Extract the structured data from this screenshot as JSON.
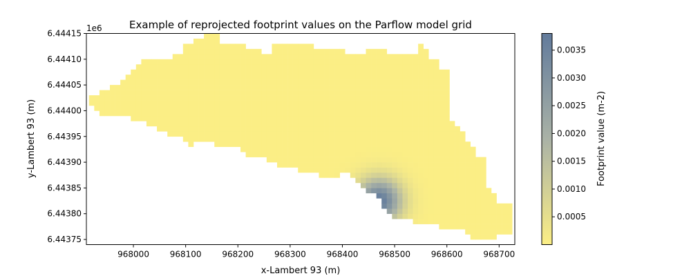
{
  "chart_data": {
    "type": "heatmap",
    "title": "Example of reprojected footprint values on the Parflow model grid",
    "xlabel": "x-Lambert 93 (m)",
    "ylabel": "y-Lambert 93 (m)",
    "y_offset_label": "1e6",
    "xlim": [
      967910,
      968730
    ],
    "ylim": [
      6443740,
      6444150
    ],
    "xticks": [
      968000,
      968100,
      968200,
      968300,
      968400,
      968500,
      968600,
      968700
    ],
    "yticks": [
      6443750,
      6443800,
      6443850,
      6443900,
      6443950,
      6444000,
      6444050,
      6444100,
      6444150
    ],
    "ytick_labels": [
      "6.44375",
      "6.44380",
      "6.44385",
      "6.44390",
      "6.44395",
      "6.44400",
      "6.44405",
      "6.44410",
      "6.44415"
    ],
    "grid": false,
    "cell_size": 10,
    "colorbar": {
      "label": "Footprint value (m-2)",
      "min": 0,
      "max": 0.0038,
      "ticks": [
        0.0005,
        0.001,
        0.0015,
        0.002,
        0.0025,
        0.003,
        0.0035
      ],
      "tick_labels": [
        "0.0005",
        "0.0010",
        "0.0015",
        "0.0020",
        "0.0025",
        "0.0030",
        "0.0035"
      ],
      "colors": [
        "#fbee85",
        "#aab2a6",
        "#627b9c"
      ]
    },
    "domain_columns": [
      [
        967920,
        6444015,
        6444025
      ],
      [
        967930,
        6444005,
        6444025
      ],
      [
        967940,
        6443995,
        6444035
      ],
      [
        967950,
        6443995,
        6444035
      ],
      [
        967960,
        6443995,
        6444045
      ],
      [
        967970,
        6443995,
        6444045
      ],
      [
        967980,
        6443995,
        6444055
      ],
      [
        967990,
        6443995,
        6444065
      ],
      [
        968000,
        6443985,
        6444075
      ],
      [
        968010,
        6443985,
        6444085
      ],
      [
        968020,
        6443985,
        6444095
      ],
      [
        968030,
        6443975,
        6444095
      ],
      [
        968040,
        6443975,
        6444095
      ],
      [
        968050,
        6443965,
        6444095
      ],
      [
        968060,
        6443965,
        6444095
      ],
      [
        968070,
        6443955,
        6444095
      ],
      [
        968080,
        6443955,
        6444105
      ],
      [
        968090,
        6443955,
        6444105
      ],
      [
        968100,
        6443945,
        6444125
      ],
      [
        968110,
        6443935,
        6444125
      ],
      [
        968120,
        6443945,
        6444135
      ],
      [
        968130,
        6443945,
        6444135
      ],
      [
        968140,
        6443945,
        6444145
      ],
      [
        968150,
        6443945,
        6444145
      ],
      [
        968160,
        6443935,
        6444145
      ],
      [
        968170,
        6443935,
        6444125
      ],
      [
        968180,
        6443935,
        6444125
      ],
      [
        968190,
        6443935,
        6444125
      ],
      [
        968200,
        6443935,
        6444125
      ],
      [
        968210,
        6443925,
        6444125
      ],
      [
        968220,
        6443915,
        6444115
      ],
      [
        968230,
        6443915,
        6444115
      ],
      [
        968240,
        6443915,
        6444115
      ],
      [
        968250,
        6443915,
        6444105
      ],
      [
        968260,
        6443905,
        6444105
      ],
      [
        968270,
        6443905,
        6444125
      ],
      [
        968280,
        6443895,
        6444125
      ],
      [
        968290,
        6443895,
        6444125
      ],
      [
        968300,
        6443895,
        6444125
      ],
      [
        968310,
        6443895,
        6444125
      ],
      [
        968320,
        6443885,
        6444125
      ],
      [
        968330,
        6443885,
        6444125
      ],
      [
        968340,
        6443885,
        6444125
      ],
      [
        968350,
        6443885,
        6444115
      ],
      [
        968360,
        6443875,
        6444115
      ],
      [
        968370,
        6443875,
        6444115
      ],
      [
        968380,
        6443875,
        6444115
      ],
      [
        968390,
        6443875,
        6444115
      ],
      [
        968400,
        6443885,
        6444115
      ],
      [
        968410,
        6443885,
        6444105
      ],
      [
        968420,
        6443875,
        6444105
      ],
      [
        968430,
        6443865,
        6444105
      ],
      [
        968440,
        6443855,
        6444105
      ],
      [
        968450,
        6443845,
        6444115
      ],
      [
        968460,
        6443845,
        6444115
      ],
      [
        968470,
        6443835,
        6444115
      ],
      [
        968480,
        6443815,
        6444115
      ],
      [
        968490,
        6443805,
        6444105
      ],
      [
        968500,
        6443795,
        6444105
      ],
      [
        968510,
        6443795,
        6444105
      ],
      [
        968520,
        6443795,
        6444105
      ],
      [
        968530,
        6443795,
        6444105
      ],
      [
        968540,
        6443785,
        6444105
      ],
      [
        968550,
        6443785,
        6444125
      ],
      [
        968560,
        6443785,
        6444115
      ],
      [
        968570,
        6443785,
        6444095
      ],
      [
        968580,
        6443785,
        6444095
      ],
      [
        968590,
        6443775,
        6444075
      ],
      [
        968600,
        6443775,
        6444075
      ],
      [
        968610,
        6443775,
        6443975
      ],
      [
        968620,
        6443775,
        6443965
      ],
      [
        968630,
        6443775,
        6443955
      ],
      [
        968640,
        6443765,
        6443935
      ],
      [
        968650,
        6443755,
        6443925
      ],
      [
        968660,
        6443755,
        6443905
      ],
      [
        968670,
        6443755,
        6443905
      ],
      [
        968680,
        6443755,
        6443845
      ],
      [
        968690,
        6443755,
        6443835
      ],
      [
        968700,
        6443765,
        6443815
      ],
      [
        968710,
        6443765,
        6443815
      ],
      [
        968720,
        6443765,
        6443815
      ]
    ],
    "footprint_peak": [
      968470,
      6443825,
      0.0038
    ],
    "footprint_spread": 30
  }
}
